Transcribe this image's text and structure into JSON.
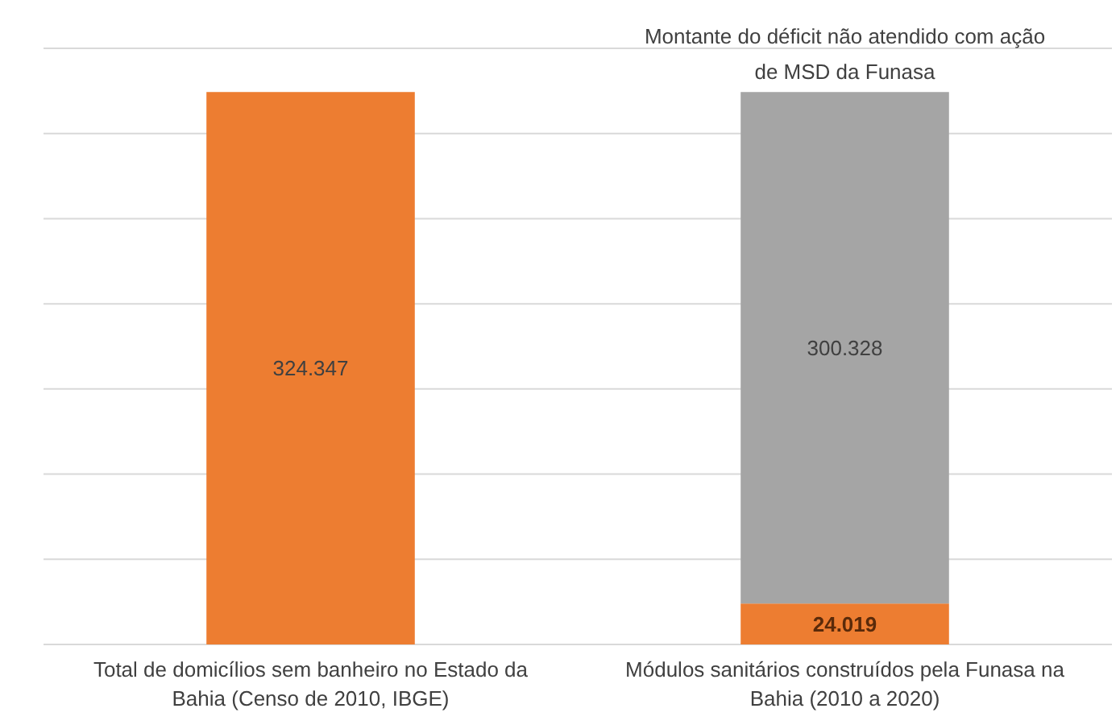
{
  "chart_data": {
    "type": "bar",
    "stacked": true,
    "categories": [
      "Total de domicílios sem banheiro no Estado da Bahia (Censo de 2010, IBGE)",
      "Módulos sanitários construídos pela Funasa na Bahia (2010 a 2020)"
    ],
    "series": [
      {
        "color": "#ed7d31",
        "values": [
          324347,
          24019
        ],
        "value_labels": [
          "324.347",
          "24.019"
        ]
      },
      {
        "color": "#a5a5a5",
        "values": [
          null,
          300328
        ],
        "value_labels": [
          null,
          "300.328"
        ]
      }
    ],
    "ylim": [
      0,
      350000
    ],
    "yticks": [
      {
        "value": 0,
        "label": null
      },
      {
        "value": 50000,
        "label": null
      },
      {
        "value": 100000,
        "label": null
      },
      {
        "value": 150000,
        "label": null
      },
      {
        "value": 200000,
        "label": null
      },
      {
        "value": 250000,
        "label": null
      },
      {
        "value": 300000,
        "label": null
      },
      {
        "value": 350000,
        "label": null
      }
    ],
    "tick_labels": "x",
    "grid": "y",
    "annotations": [
      {
        "text": "Montante do déficit não atendido com ação de MSD da Funasa",
        "x": "Módulos sanitários construídos pela Funasa na Bahia (2010 a 2020)",
        "y": 324347
      }
    ]
  }
}
